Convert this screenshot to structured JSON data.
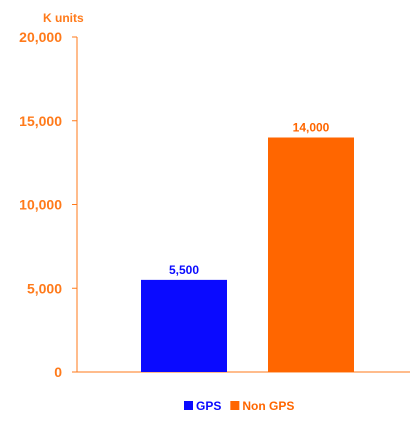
{
  "chart_data": {
    "type": "bar",
    "unit_label": "K units",
    "categories": [
      "GPS",
      "Non GPS"
    ],
    "values": [
      5500,
      14000
    ],
    "value_labels": [
      "5,500",
      "14,000"
    ],
    "colors": [
      "#0A0AFF",
      "#FF6600"
    ],
    "axis_color": "#FF7A1A",
    "data_label_colors": [
      "#0A0AFF",
      "#FF6600"
    ],
    "ylim": [
      0,
      20000
    ],
    "yticks": [
      0,
      5000,
      10000,
      15000,
      20000
    ],
    "ytick_labels": [
      "0",
      "5,000",
      "10,000",
      "15,000",
      "20,000"
    ],
    "grid": false,
    "legend": {
      "placement": "bottom",
      "entries": [
        {
          "label": "GPS",
          "color": "#0A0AFF"
        },
        {
          "label": "Non GPS",
          "color": "#FF6600"
        }
      ]
    }
  }
}
